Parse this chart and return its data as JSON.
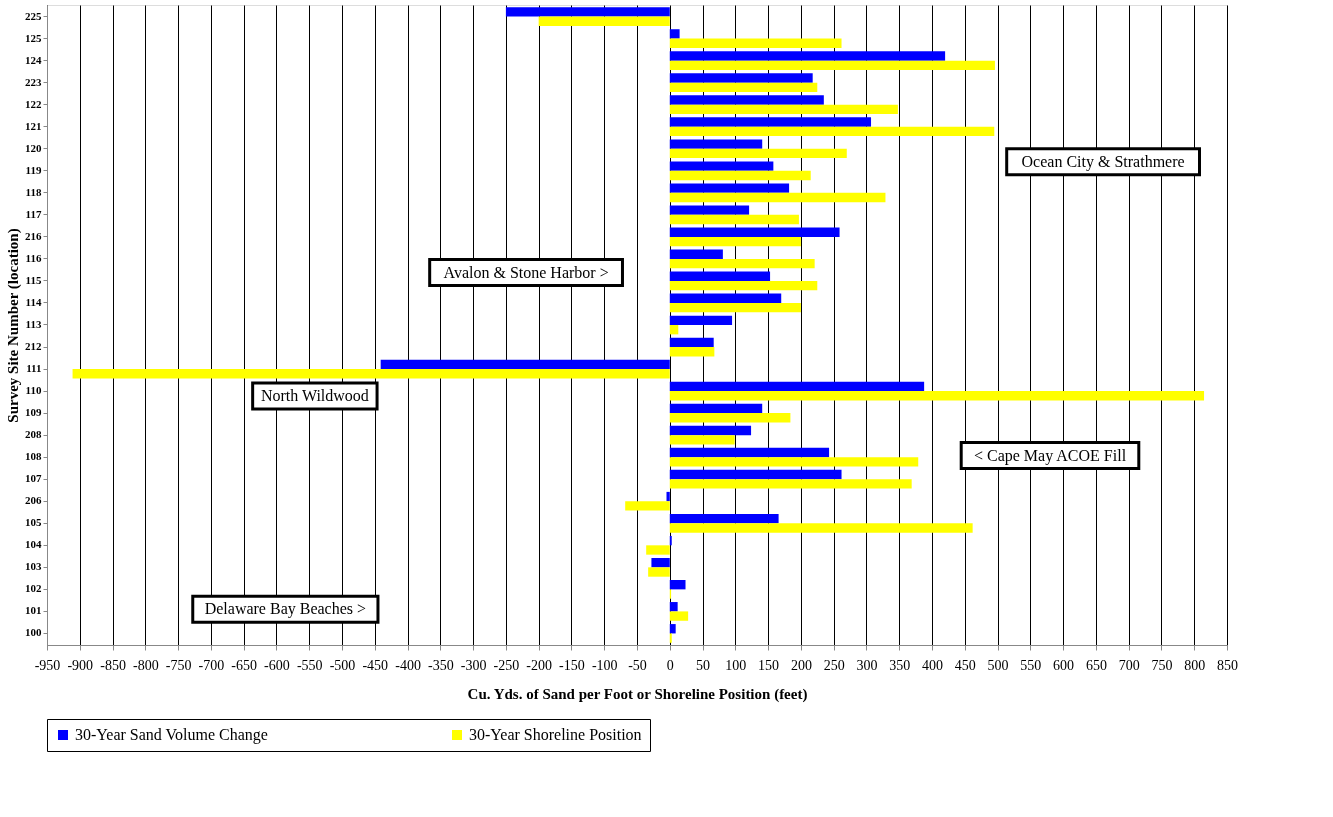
{
  "chart_data": {
    "type": "bar",
    "orientation": "horizontal",
    "xlabel": "Cu. Yds. of Sand per Foot or Shoreline Position (feet)",
    "ylabel": "Survey Site Number (location)",
    "categories": [
      "225",
      "125",
      "124",
      "223",
      "122",
      "121",
      "120",
      "119",
      "118",
      "117",
      "216",
      "116",
      "115",
      "114",
      "113",
      "212",
      "111",
      "110",
      "109",
      "208",
      "108",
      "107",
      "206",
      "105",
      "104",
      "103",
      "102",
      "101",
      "100"
    ],
    "series": [
      {
        "name": "30-Year Sand Volume Change",
        "color": "#0000ff",
        "values": [
          -250,
          15,
          420,
          218,
          235,
          307,
          141,
          158,
          182,
          121,
          259,
          81,
          153,
          170,
          95,
          67,
          -441,
          388,
          141,
          124,
          243,
          262,
          -5,
          166,
          3,
          -28,
          24,
          12,
          9
        ]
      },
      {
        "name": "30-Year Shoreline Position",
        "color": "#ffff00",
        "values": [
          -200,
          262,
          496,
          225,
          348,
          495,
          270,
          215,
          329,
          197,
          200,
          221,
          225,
          200,
          13,
          68,
          -911,
          815,
          184,
          99,
          379,
          369,
          -68,
          462,
          -36,
          -33,
          2,
          28,
          3
        ]
      }
    ],
    "xlim": [
      -950,
      850
    ],
    "xticks": [
      -950,
      -900,
      -850,
      -800,
      -750,
      -700,
      -650,
      -600,
      -550,
      -500,
      -450,
      -400,
      -350,
      -300,
      -250,
      -200,
      -150,
      -100,
      -50,
      0,
      50,
      100,
      150,
      200,
      250,
      300,
      350,
      400,
      450,
      500,
      550,
      600,
      650,
      700,
      750,
      800,
      850
    ],
    "grid": "x",
    "legend": "bottom",
    "annotations": [
      "Ocean City & Strathmere",
      "Avalon & Stone Harbor >",
      "North Wildwood",
      "<  Cape May ACOE Fill",
      "Delaware Bay Beaches >"
    ]
  }
}
